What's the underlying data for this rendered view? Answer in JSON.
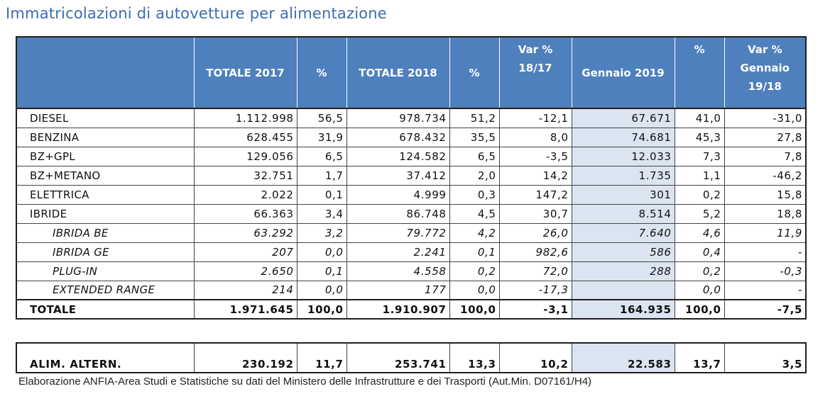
{
  "title": "Immatricolazioni di autovetture per alimentazione",
  "colors": {
    "header_bg": "#4e80bd",
    "highlight_col": "#dbe5f1",
    "title": "#3e6ab2"
  },
  "headers": [
    "",
    "TOTALE 2017",
    "%",
    "TOTALE 2018",
    "%",
    "Var %\n18/17",
    "Gennaio 2019",
    "%",
    "Var %\nGennaio\n19/18"
  ],
  "rows": [
    {
      "label": "DIESEL",
      "sub": false,
      "cells": [
        "1.112.998",
        "56,5",
        "978.734",
        "51,2",
        "-12,1",
        "67.671",
        "41,0",
        "-31,0"
      ]
    },
    {
      "label": "BENZINA",
      "sub": false,
      "cells": [
        "628.455",
        "31,9",
        "678.432",
        "35,5",
        "8,0",
        "74.681",
        "45,3",
        "27,8"
      ]
    },
    {
      "label": "BZ+GPL",
      "sub": false,
      "cells": [
        "129.056",
        "6,5",
        "124.582",
        "6,5",
        "-3,5",
        "12.033",
        "7,3",
        "7,8"
      ]
    },
    {
      "label": "BZ+METANO",
      "sub": false,
      "cells": [
        "32.751",
        "1,7",
        "37.412",
        "2,0",
        "14,2",
        "1.735",
        "1,1",
        "-46,2"
      ]
    },
    {
      "label": "ELETTRICA",
      "sub": false,
      "cells": [
        "2.022",
        "0,1",
        "4.999",
        "0,3",
        "147,2",
        "301",
        "0,2",
        "15,8"
      ]
    },
    {
      "label": "IBRIDE",
      "sub": false,
      "cells": [
        "66.363",
        "3,4",
        "86.748",
        "4,5",
        "30,7",
        "8.514",
        "5,2",
        "18,8"
      ]
    },
    {
      "label": "IBRIDA BE",
      "sub": true,
      "cells": [
        "63.292",
        "3,2",
        "79.772",
        "4,2",
        "26,0",
        "7.640",
        "4,6",
        "11,9"
      ]
    },
    {
      "label": "IBRIDA GE",
      "sub": true,
      "cells": [
        "207",
        "0,0",
        "2.241",
        "0,1",
        "982,6",
        "586",
        "0,4",
        "-"
      ]
    },
    {
      "label": "PLUG-IN",
      "sub": true,
      "cells": [
        "2.650",
        "0,1",
        "4.558",
        "0,2",
        "72,0",
        "288",
        "0,2",
        "-0,3"
      ]
    },
    {
      "label": "EXTENDED RANGE",
      "sub": true,
      "cells": [
        "214",
        "0,0",
        "177",
        "0,0",
        "-17,3",
        "",
        "0,0",
        "-"
      ]
    }
  ],
  "total": {
    "label": "TOTALE",
    "cells": [
      "1.971.645",
      "100,0",
      "1.910.907",
      "100,0",
      "-3,1",
      "164.935",
      "100,0",
      "-7,5"
    ]
  },
  "alt": {
    "label": "ALIM. ALTERN.",
    "cells": [
      "230.192",
      "11,7",
      "253.741",
      "13,3",
      "10,2",
      "22.583",
      "13,7",
      "3,5"
    ]
  },
  "footnote": "Elaborazione ANFIA-Area Studi e Statistiche su dati del Ministero delle Infrastrutture e dei Trasporti (Aut.Min. D07161/H4)"
}
